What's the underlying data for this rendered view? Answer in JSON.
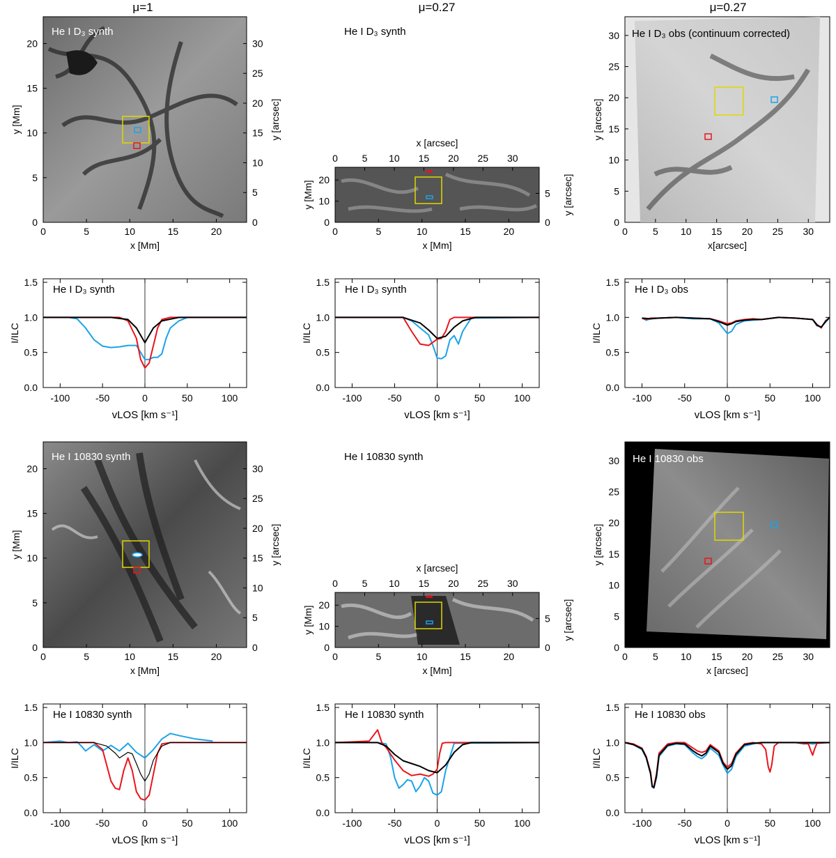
{
  "column_titles": [
    "μ=1",
    "μ=0.27",
    "μ=0.27"
  ],
  "colors": {
    "blue": "#1aa3e8",
    "red": "#e8151b",
    "black": "#000000",
    "yellow": "#e0d800"
  },
  "images": [
    {
      "label": "He I D₃ synth",
      "label_color": "#ffffff",
      "xlabel": "x [Mm]",
      "ylabel": "y [Mm]",
      "right_label": "y [arcsec]",
      "xticks": [
        "0",
        "5",
        "10",
        "15",
        "20"
      ],
      "yticks": [
        "0",
        "5",
        "10",
        "15",
        "20"
      ],
      "right_ticks": [
        "0",
        "5",
        "10",
        "15",
        "20",
        "25",
        "30"
      ],
      "style": "synth-d3"
    },
    {
      "label": "He I D₃ synth",
      "label_color": "#000000",
      "xlabel": "x [Mm]",
      "ylabel": "y [Mm]",
      "top_label": "x [arcsec]",
      "right_label": "y [arcsec]",
      "xticks": [
        "0",
        "5",
        "10",
        "15",
        "20"
      ],
      "yticks": [
        "0",
        "10",
        "20"
      ],
      "top_ticks": [
        "0",
        "5",
        "10",
        "15",
        "20",
        "25",
        "30"
      ],
      "right_ticks": [
        "0",
        "5"
      ],
      "style": "synth-d3-inclined"
    },
    {
      "label": "He I D₃ obs (continuum corrected)",
      "label_color": "#000000",
      "xlabel": "x[arcsec]",
      "ylabel": "y [arcsec]",
      "xticks": [
        "0",
        "5",
        "10",
        "15",
        "20",
        "25",
        "30"
      ],
      "yticks": [
        "0",
        "5",
        "10",
        "15",
        "20",
        "25",
        "30"
      ],
      "style": "obs-d3"
    },
    {
      "label": "He I 10830 synth",
      "label_color": "#ffffff",
      "xlabel": "x [Mm]",
      "ylabel": "y [Mm]",
      "right_label": "y [arcsec]",
      "xticks": [
        "0",
        "5",
        "10",
        "15",
        "20"
      ],
      "yticks": [
        "0",
        "5",
        "10",
        "15",
        "20"
      ],
      "right_ticks": [
        "0",
        "5",
        "10",
        "15",
        "20",
        "25",
        "30"
      ],
      "style": "synth-10830"
    },
    {
      "label": "He I 10830 synth",
      "label_color": "#000000",
      "xlabel": "x [Mm]",
      "ylabel": "y [Mm]",
      "top_label": "x [arcsec]",
      "right_label": "y [arcsec]",
      "xticks": [
        "0",
        "5",
        "10",
        "15",
        "20"
      ],
      "yticks": [
        "0",
        "10",
        "20"
      ],
      "top_ticks": [
        "0",
        "5",
        "10",
        "15",
        "20",
        "25",
        "30"
      ],
      "right_ticks": [
        "0",
        "5"
      ],
      "style": "synth-10830-inclined"
    },
    {
      "label": "He I 10830 obs",
      "label_color": "#ffffff",
      "xlabel": "x [arcsec]",
      "ylabel": "y [arcsec]",
      "xticks": [
        "0",
        "5",
        "10",
        "15",
        "20",
        "25",
        "30"
      ],
      "yticks": [
        "0",
        "5",
        "10",
        "15",
        "20",
        "25",
        "30"
      ],
      "style": "obs-10830"
    }
  ],
  "chart_data": [
    {
      "type": "line",
      "title": "He I D₃ synth",
      "xlabel": "vLOS [km s⁻¹]",
      "ylabel": "I/ILC",
      "xlim": [
        -120,
        120
      ],
      "ylim": [
        0,
        1.55
      ],
      "xticks": [
        -100,
        -50,
        0,
        50,
        100
      ],
      "yticks": [
        0.0,
        0.5,
        1.0,
        1.5
      ],
      "series": [
        {
          "color": "blue",
          "x": [
            -120,
            -90,
            -80,
            -70,
            -60,
            -50,
            -40,
            -30,
            -20,
            -10,
            0,
            5,
            10,
            15,
            20,
            25,
            30,
            40,
            50,
            120
          ],
          "y": [
            1.0,
            1.0,
            0.98,
            0.85,
            0.68,
            0.59,
            0.57,
            0.58,
            0.6,
            0.6,
            0.4,
            0.4,
            0.43,
            0.43,
            0.48,
            0.7,
            0.85,
            0.95,
            1.0,
            1.0
          ]
        },
        {
          "color": "red",
          "x": [
            -120,
            -30,
            -20,
            -10,
            -5,
            0,
            5,
            10,
            15,
            20,
            30,
            120
          ],
          "y": [
            1.0,
            1.0,
            0.95,
            0.7,
            0.4,
            0.28,
            0.35,
            0.6,
            0.85,
            0.97,
            1.0,
            1.0
          ]
        },
        {
          "color": "black",
          "x": [
            -120,
            -40,
            -20,
            -10,
            0,
            10,
            20,
            40,
            120
          ],
          "y": [
            1.0,
            1.0,
            0.97,
            0.85,
            0.64,
            0.85,
            0.95,
            1.0,
            1.0
          ]
        }
      ]
    },
    {
      "type": "line",
      "title": "He I D₃ synth",
      "xlabel": "vLOS [km s⁻¹]",
      "ylabel": "I/ILC",
      "xlim": [
        -120,
        120
      ],
      "ylim": [
        0,
        1.55
      ],
      "xticks": [
        -100,
        -50,
        0,
        50,
        100
      ],
      "yticks": [
        0.0,
        0.5,
        1.0,
        1.5
      ],
      "series": [
        {
          "color": "blue",
          "x": [
            -120,
            -40,
            -30,
            -20,
            -10,
            -5,
            0,
            5,
            10,
            15,
            20,
            25,
            30,
            40,
            120
          ],
          "y": [
            1.0,
            1.0,
            0.95,
            0.85,
            0.75,
            0.6,
            0.42,
            0.41,
            0.45,
            0.68,
            0.74,
            0.62,
            0.8,
            0.99,
            1.0
          ]
        },
        {
          "color": "red",
          "x": [
            -120,
            -40,
            -30,
            -20,
            -10,
            0,
            5,
            10,
            15,
            20,
            120
          ],
          "y": [
            1.0,
            1.0,
            0.8,
            0.62,
            0.6,
            0.69,
            0.7,
            0.8,
            0.97,
            1.0,
            1.0
          ]
        },
        {
          "color": "black",
          "x": [
            -120,
            -40,
            -20,
            -10,
            0,
            10,
            20,
            30,
            45,
            120
          ],
          "y": [
            1.0,
            1.0,
            0.92,
            0.82,
            0.7,
            0.73,
            0.86,
            0.95,
            1.0,
            1.0
          ]
        }
      ]
    },
    {
      "type": "line",
      "title": "He I D₃ obs",
      "xlabel": "vLOS [km s⁻¹]",
      "ylabel": "I/ILC",
      "xlim": [
        -120,
        120
      ],
      "ylim": [
        0,
        1.55
      ],
      "xticks": [
        -100,
        -50,
        0,
        50,
        100
      ],
      "yticks": [
        0.0,
        0.5,
        1.0,
        1.5
      ],
      "series": [
        {
          "color": "blue",
          "x": [
            -100,
            -95,
            -90,
            -80,
            -60,
            -40,
            -20,
            -10,
            0,
            5,
            10,
            20,
            30,
            40,
            60,
            80,
            100,
            105,
            110,
            115,
            120
          ],
          "y": [
            0.99,
            0.96,
            0.98,
            0.99,
            1.0,
            0.98,
            0.98,
            0.92,
            0.77,
            0.8,
            0.9,
            0.95,
            0.96,
            0.97,
            1.0,
            0.99,
            0.97,
            0.88,
            0.86,
            0.93,
            1.0
          ]
        },
        {
          "color": "red",
          "x": [
            -100,
            -95,
            -90,
            -80,
            -60,
            -40,
            -20,
            -10,
            0,
            5,
            10,
            20,
            30,
            40,
            60,
            80,
            100,
            105,
            110,
            115,
            120
          ],
          "y": [
            0.99,
            0.97,
            0.99,
            0.99,
            1.0,
            0.99,
            0.98,
            0.95,
            0.91,
            0.92,
            0.95,
            0.97,
            0.98,
            0.97,
            1.0,
            0.99,
            0.97,
            0.9,
            0.85,
            0.95,
            1.0
          ]
        },
        {
          "color": "black",
          "x": [
            -100,
            -90,
            -80,
            -60,
            -40,
            -20,
            -10,
            0,
            5,
            10,
            20,
            30,
            40,
            60,
            80,
            100,
            105,
            110,
            115,
            120
          ],
          "y": [
            0.99,
            0.98,
            0.99,
            1.0,
            0.99,
            0.98,
            0.94,
            0.89,
            0.91,
            0.94,
            0.96,
            0.97,
            0.97,
            1.0,
            0.99,
            0.97,
            0.89,
            0.86,
            0.94,
            1.0
          ]
        }
      ]
    },
    {
      "type": "line",
      "title": "He I 10830 synth",
      "xlabel": "vLOS [km s⁻¹]",
      "ylabel": "I/ILC",
      "xlim": [
        -120,
        120
      ],
      "ylim": [
        0,
        1.55
      ],
      "xticks": [
        -100,
        -50,
        0,
        50,
        100
      ],
      "yticks": [
        0.0,
        0.5,
        1.0,
        1.5
      ],
      "series": [
        {
          "color": "blue",
          "x": [
            -120,
            -100,
            -90,
            -80,
            -75,
            -70,
            -60,
            -50,
            -40,
            -30,
            -20,
            -10,
            0,
            10,
            20,
            30,
            40,
            60,
            80
          ],
          "y": [
            1.0,
            1.02,
            1.0,
            1.01,
            0.95,
            0.88,
            0.97,
            0.88,
            0.96,
            0.88,
            0.99,
            0.86,
            0.78,
            0.9,
            1.05,
            1.13,
            1.1,
            1.05,
            1.02
          ]
        },
        {
          "color": "red",
          "x": [
            -120,
            -60,
            -50,
            -40,
            -35,
            -30,
            -25,
            -20,
            -15,
            -10,
            -5,
            0,
            5,
            10,
            15,
            20,
            30,
            120
          ],
          "y": [
            1.0,
            1.0,
            0.9,
            0.45,
            0.35,
            0.33,
            0.6,
            0.78,
            0.6,
            0.3,
            0.2,
            0.18,
            0.25,
            0.55,
            0.85,
            0.98,
            1.0,
            1.0
          ]
        },
        {
          "color": "black",
          "x": [
            -120,
            -60,
            -45,
            -35,
            -30,
            -20,
            -15,
            -10,
            -5,
            0,
            5,
            10,
            20,
            30,
            120
          ],
          "y": [
            1.0,
            1.0,
            0.95,
            0.85,
            0.78,
            0.86,
            0.84,
            0.7,
            0.55,
            0.45,
            0.55,
            0.75,
            0.95,
            1.0,
            1.0
          ]
        }
      ]
    },
    {
      "type": "line",
      "title": "He I 10830 synth",
      "xlabel": "vLOS [km s⁻¹]",
      "ylabel": "I/ILC",
      "xlim": [
        -120,
        120
      ],
      "ylim": [
        0,
        1.55
      ],
      "xticks": [
        -100,
        -50,
        0,
        50,
        100
      ],
      "yticks": [
        0.0,
        0.5,
        1.0,
        1.5
      ],
      "series": [
        {
          "color": "blue",
          "x": [
            -120,
            -70,
            -60,
            -55,
            -50,
            -45,
            -40,
            -35,
            -30,
            -25,
            -20,
            -15,
            -10,
            -5,
            0,
            5,
            10,
            20,
            120
          ],
          "y": [
            1.0,
            1.0,
            0.98,
            0.8,
            0.5,
            0.35,
            0.4,
            0.47,
            0.45,
            0.3,
            0.38,
            0.5,
            0.45,
            0.28,
            0.25,
            0.3,
            0.6,
            0.99,
            1.0
          ]
        },
        {
          "color": "red",
          "x": [
            -120,
            -80,
            -75,
            -70,
            -65,
            -60,
            -50,
            -40,
            -30,
            -20,
            -10,
            -5,
            0,
            3,
            6,
            10,
            120
          ],
          "y": [
            1.0,
            1.02,
            1.1,
            1.18,
            1.0,
            0.93,
            0.75,
            0.6,
            0.53,
            0.55,
            0.52,
            0.55,
            0.62,
            0.85,
            0.99,
            1.0,
            1.0
          ]
        },
        {
          "color": "black",
          "x": [
            -120,
            -70,
            -60,
            -50,
            -40,
            -30,
            -20,
            -10,
            0,
            10,
            20,
            30,
            40,
            120
          ],
          "y": [
            1.0,
            1.0,
            0.95,
            0.83,
            0.74,
            0.7,
            0.66,
            0.6,
            0.57,
            0.68,
            0.86,
            0.97,
            1.0,
            1.0
          ]
        }
      ]
    },
    {
      "type": "line",
      "title": "He I 10830 obs",
      "xlabel": "vLOS [km s⁻¹]",
      "ylabel": "I/ILC",
      "xlim": [
        -120,
        120
      ],
      "ylim": [
        0,
        1.55
      ],
      "xticks": [
        -100,
        -50,
        0,
        50,
        100
      ],
      "yticks": [
        0.0,
        0.5,
        1.0,
        1.5
      ],
      "series": [
        {
          "color": "blue",
          "x": [
            -120,
            -110,
            -100,
            -95,
            -90,
            -88,
            -86,
            -83,
            -80,
            -70,
            -60,
            -50,
            -40,
            -35,
            -30,
            -25,
            -20,
            -10,
            -5,
            0,
            5,
            10,
            20,
            30,
            40,
            60,
            80,
            90,
            95,
            100,
            105,
            110,
            120
          ],
          "y": [
            1.0,
            0.97,
            0.9,
            0.78,
            0.55,
            0.38,
            0.35,
            0.5,
            0.8,
            0.95,
            0.98,
            0.97,
            0.85,
            0.8,
            0.77,
            0.82,
            0.92,
            0.82,
            0.68,
            0.56,
            0.62,
            0.8,
            0.95,
            0.98,
            1.0,
            1.0,
            1.0,
            0.98,
            0.99,
            0.98,
            0.99,
            1.0,
            1.0
          ]
        },
        {
          "color": "red",
          "x": [
            -120,
            -110,
            -100,
            -95,
            -90,
            -88,
            -86,
            -83,
            -80,
            -70,
            -60,
            -50,
            -40,
            -35,
            -30,
            -25,
            -20,
            -10,
            -5,
            0,
            5,
            10,
            20,
            30,
            40,
            45,
            48,
            50,
            52,
            55,
            60,
            80,
            95,
            98,
            100,
            102,
            105,
            120
          ],
          "y": [
            1.0,
            0.98,
            0.92,
            0.8,
            0.58,
            0.38,
            0.37,
            0.55,
            0.85,
            0.98,
            1.0,
            1.0,
            0.92,
            0.88,
            0.86,
            0.88,
            0.97,
            0.88,
            0.72,
            0.65,
            0.7,
            0.85,
            0.98,
            1.0,
            0.98,
            0.9,
            0.65,
            0.58,
            0.68,
            0.95,
            1.0,
            1.0,
            0.98,
            0.88,
            0.82,
            0.9,
            0.99,
            1.0
          ]
        },
        {
          "color": "black",
          "x": [
            -120,
            -110,
            -100,
            -95,
            -90,
            -88,
            -86,
            -83,
            -80,
            -70,
            -60,
            -50,
            -40,
            -35,
            -30,
            -25,
            -20,
            -10,
            -5,
            0,
            5,
            10,
            20,
            30,
            40,
            60,
            80,
            120
          ],
          "y": [
            1.0,
            0.97,
            0.91,
            0.79,
            0.56,
            0.37,
            0.36,
            0.52,
            0.82,
            0.96,
            0.99,
            0.98,
            0.88,
            0.84,
            0.81,
            0.85,
            0.95,
            0.86,
            0.7,
            0.62,
            0.67,
            0.83,
            0.97,
            0.99,
            1.0,
            1.0,
            1.0,
            1.0
          ]
        }
      ]
    }
  ]
}
